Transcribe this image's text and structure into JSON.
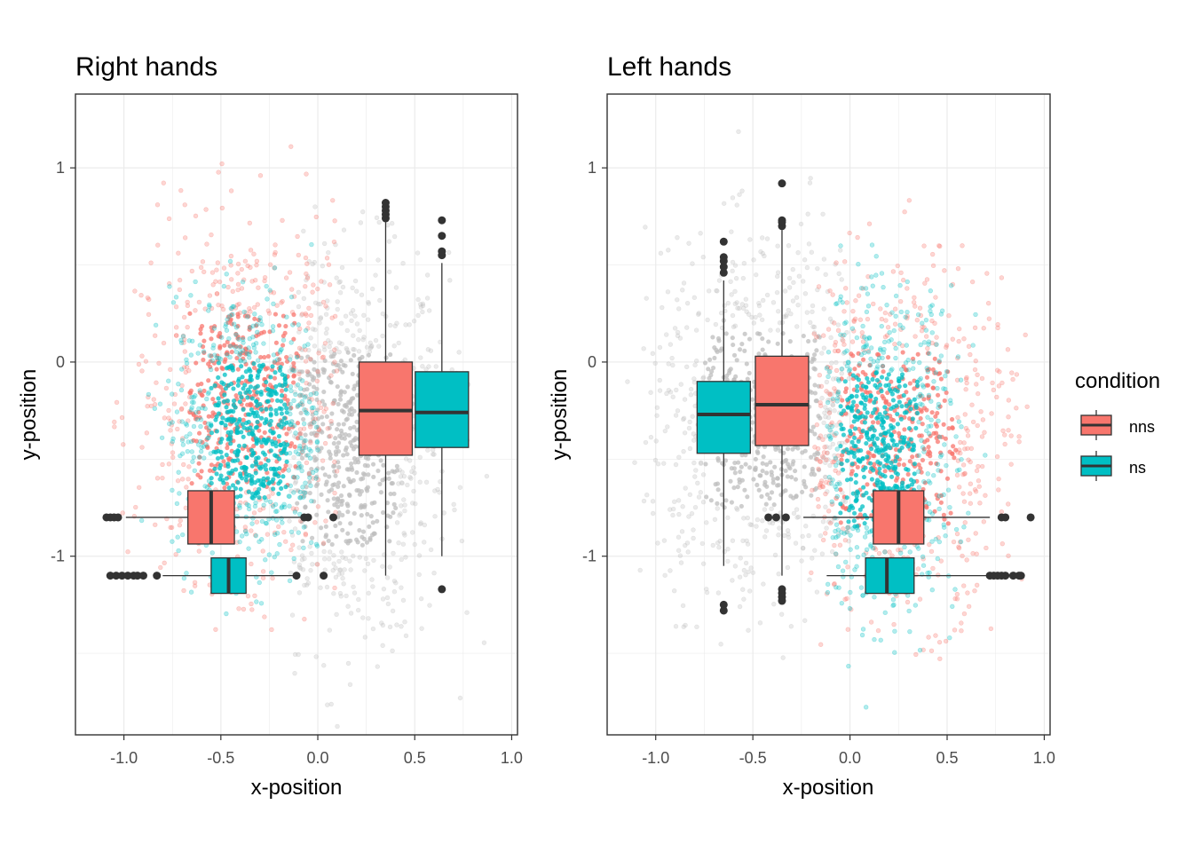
{
  "colors": {
    "nns": "#f8766d",
    "ns": "#00bfc4",
    "other_points": "#bebebe",
    "box_line": "#333333",
    "grid": "#ebebeb",
    "panel_border": "#333333"
  },
  "legend": {
    "title": "condition",
    "items": [
      {
        "key": "nns",
        "label": "nns"
      },
      {
        "key": "ns",
        "label": "ns"
      }
    ]
  },
  "chart_data": [
    {
      "type": "scatter",
      "title": "Right hands",
      "xlabel": "x-position",
      "ylabel": "y-position",
      "xlim": [
        -1.25,
        1.03
      ],
      "ylim": [
        -1.92,
        1.38
      ],
      "xticks": [
        {
          "v": -1.0,
          "label": "-1.0"
        },
        {
          "v": -0.5,
          "label": "-0.5"
        },
        {
          "v": 0.0,
          "label": "0.0"
        },
        {
          "v": 0.5,
          "label": "0.5"
        },
        {
          "v": 1.0,
          "label": "1.0"
        }
      ],
      "yticks": [
        {
          "v": 1,
          "label": "1"
        },
        {
          "v": 0,
          "label": "0"
        },
        {
          "v": -1,
          "label": "-1"
        }
      ],
      "point_clouds": [
        {
          "group": "other",
          "cx": 0.15,
          "cy": -0.45,
          "sx": 0.26,
          "sy": 0.5,
          "xmin": -0.15,
          "xmax": 0.95,
          "ymin": -1.9,
          "ymax": 0.95
        },
        {
          "group": "nns",
          "cx": -0.38,
          "cy": -0.2,
          "sx": 0.28,
          "sy": 0.45,
          "xmin": -1.05,
          "xmax": 0.1,
          "ymin": -1.4,
          "ymax": 1.22
        },
        {
          "group": "ns",
          "cx": -0.35,
          "cy": -0.35,
          "sx": 0.2,
          "sy": 0.35,
          "xmin": -1.0,
          "xmax": 0.0,
          "ymin": -1.35,
          "ymax": 0.68
        }
      ],
      "boxplots": [
        {
          "group": "nns",
          "orientation": "vertical",
          "x": 0.35,
          "q1": -0.48,
          "median": -0.25,
          "q3": 0.0,
          "whisker_low": -1.1,
          "whisker_high": 0.72,
          "outliers": [
            0.74,
            0.76,
            0.78,
            0.8,
            0.82
          ]
        },
        {
          "group": "ns",
          "orientation": "vertical",
          "x": 0.64,
          "q1": -0.44,
          "median": -0.26,
          "q3": -0.05,
          "whisker_low": -1.0,
          "whisker_high": 0.51,
          "outliers": [
            0.55,
            0.57,
            0.65,
            0.73,
            -1.17
          ]
        },
        {
          "group": "nns",
          "orientation": "horizontal",
          "y": -0.8,
          "q1": -0.67,
          "median": -0.55,
          "q3": -0.43,
          "whisker_low": -0.99,
          "whisker_high": -0.07,
          "outliers": [
            -1.09,
            -1.07,
            -1.05,
            -1.03,
            -0.07,
            -0.05,
            0.08
          ]
        },
        {
          "group": "ns",
          "orientation": "horizontal",
          "y": -1.1,
          "q1": -0.55,
          "median": -0.46,
          "q3": -0.37,
          "whisker_low": -0.8,
          "whisker_high": -0.13,
          "outliers": [
            -1.07,
            -1.04,
            -1.01,
            -0.98,
            -0.95,
            -0.93,
            -0.9,
            -0.83,
            -0.11,
            0.03
          ]
        }
      ]
    },
    {
      "type": "scatter",
      "title": "Left hands",
      "xlabel": "x-position",
      "ylabel": "y-position",
      "xlim": [
        -1.25,
        1.03
      ],
      "ylim": [
        -1.92,
        1.38
      ],
      "xticks": [
        {
          "v": -1.0,
          "label": "-1.0"
        },
        {
          "v": -0.5,
          "label": "-0.5"
        },
        {
          "v": 0.0,
          "label": "0.0"
        },
        {
          "v": 0.5,
          "label": "0.5"
        },
        {
          "v": 1.0,
          "label": "1.0"
        }
      ],
      "yticks": [
        {
          "v": 1,
          "label": "1"
        },
        {
          "v": 0,
          "label": "0"
        },
        {
          "v": -1,
          "label": "-1"
        }
      ],
      "point_clouds": [
        {
          "group": "other",
          "cx": -0.45,
          "cy": -0.3,
          "sx": 0.3,
          "sy": 0.45,
          "xmin": -1.15,
          "xmax": 0.0,
          "ymin": -1.55,
          "ymax": 1.22
        },
        {
          "group": "nns",
          "cx": 0.25,
          "cy": -0.4,
          "sx": 0.3,
          "sy": 0.45,
          "xmin": -0.2,
          "xmax": 0.92,
          "ymin": -1.55,
          "ymax": 0.92
        },
        {
          "group": "ns",
          "cx": 0.15,
          "cy": -0.45,
          "sx": 0.2,
          "sy": 0.4,
          "xmin": -0.12,
          "xmax": 0.85,
          "ymin": -1.8,
          "ymax": 0.63
        }
      ],
      "boxplots": [
        {
          "group": "ns",
          "orientation": "vertical",
          "x": -0.65,
          "q1": -0.47,
          "median": -0.27,
          "q3": -0.1,
          "whisker_low": -1.05,
          "whisker_high": 0.42,
          "outliers": [
            0.46,
            0.49,
            0.52,
            0.54,
            0.62,
            -1.25,
            -1.28
          ]
        },
        {
          "group": "nns",
          "orientation": "vertical",
          "x": -0.35,
          "q1": -0.43,
          "median": -0.22,
          "q3": 0.03,
          "whisker_low": -1.1,
          "whisker_high": 0.68,
          "outliers": [
            0.7,
            0.72,
            0.73,
            0.92,
            -1.17,
            -1.19,
            -1.21,
            -1.23
          ]
        },
        {
          "group": "nns",
          "orientation": "horizontal",
          "y": -0.8,
          "q1": 0.12,
          "median": 0.25,
          "q3": 0.38,
          "whisker_low": -0.24,
          "whisker_high": 0.72,
          "outliers": [
            -0.42,
            -0.38,
            -0.33,
            0.78,
            0.8,
            0.93
          ]
        },
        {
          "group": "ns",
          "orientation": "horizontal",
          "y": -1.1,
          "q1": 0.08,
          "median": 0.19,
          "q3": 0.33,
          "whisker_low": -0.12,
          "whisker_high": 0.71,
          "outliers": [
            0.72,
            0.74,
            0.76,
            0.78,
            0.8,
            0.84,
            0.87,
            0.88
          ]
        }
      ]
    }
  ]
}
